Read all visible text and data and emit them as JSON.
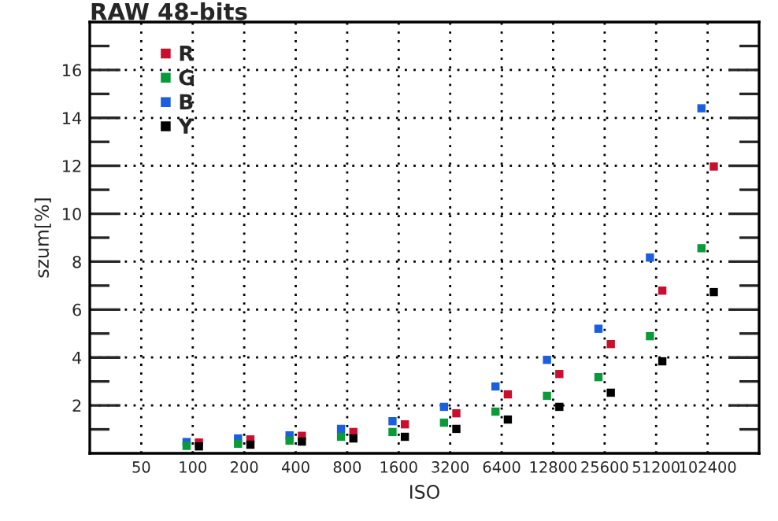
{
  "chart_data": {
    "type": "scatter",
    "title": "RAW 48-bits",
    "xlabel": "ISO",
    "ylabel": "szum[%]",
    "categories": [
      "50",
      "100",
      "200",
      "400",
      "800",
      "1600",
      "3200",
      "6400",
      "12800",
      "25600",
      "51200",
      "102400"
    ],
    "series": [
      {
        "name": "R",
        "color": "#c8102e",
        "values": [
          null,
          0.45,
          0.58,
          0.73,
          0.89,
          1.21,
          1.67,
          2.46,
          3.31,
          4.56,
          6.79,
          11.97
        ]
      },
      {
        "name": "G",
        "color": "#0a9a3a",
        "values": [
          null,
          0.31,
          0.4,
          0.53,
          0.69,
          0.89,
          1.28,
          1.74,
          2.4,
          3.18,
          4.89,
          8.56
        ]
      },
      {
        "name": "B",
        "color": "#1a5fe0",
        "values": [
          null,
          0.47,
          0.62,
          0.75,
          1.02,
          1.34,
          1.94,
          2.79,
          3.9,
          5.2,
          8.17,
          14.4
        ]
      },
      {
        "name": "Y",
        "color": "#000000",
        "values": [
          null,
          0.29,
          0.36,
          0.49,
          0.62,
          0.69,
          1.02,
          1.41,
          1.94,
          2.53,
          3.84,
          6.73
        ]
      }
    ],
    "ylim": [
      0,
      18
    ],
    "yticks": [
      2,
      4,
      6,
      8,
      10,
      12,
      14,
      16
    ],
    "grid": true,
    "legend": "top left",
    "marker": "square"
  }
}
